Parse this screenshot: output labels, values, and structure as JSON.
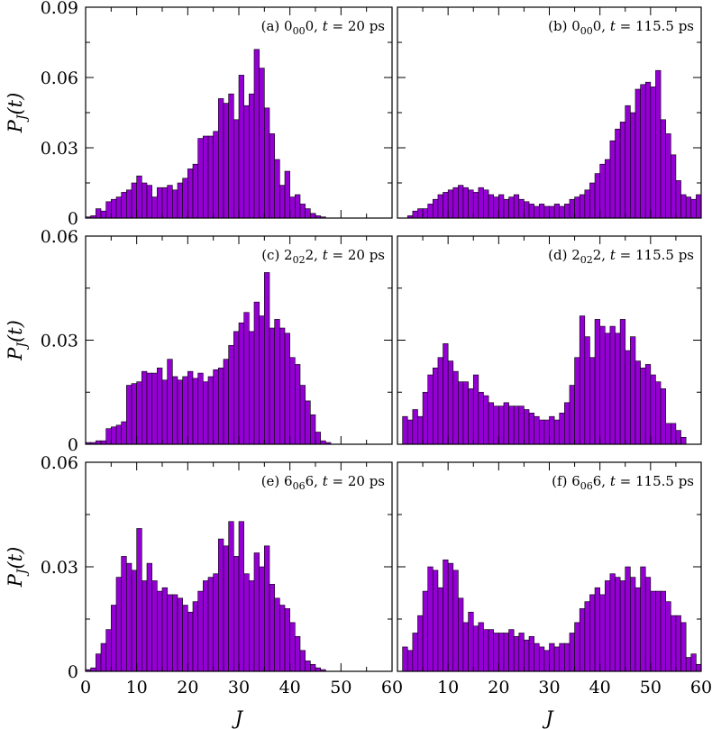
{
  "chart_data": [
    {
      "type": "bar",
      "panel": "a",
      "annotation": "(a) 0₀₀0, t = 20 ps",
      "xlabel": "",
      "ylabel": "P_J(t)",
      "xlim": [
        0,
        60
      ],
      "ylim": [
        0,
        0.09
      ],
      "yticks": [
        "0",
        "0.03",
        "0.06",
        "0.09"
      ],
      "xticks": [],
      "x": [
        0,
        1,
        2,
        3,
        4,
        5,
        6,
        7,
        8,
        9,
        10,
        11,
        12,
        13,
        14,
        15,
        16,
        17,
        18,
        19,
        20,
        21,
        22,
        23,
        24,
        25,
        26,
        27,
        28,
        29,
        30,
        31,
        32,
        33,
        34,
        35,
        36,
        37,
        38,
        39,
        40,
        41,
        42,
        43,
        44,
        45,
        46,
        47,
        48,
        49,
        50,
        51,
        52,
        53,
        54,
        55,
        56,
        57,
        58,
        59
      ],
      "values": [
        0.0005,
        0.001,
        0.004,
        0.003,
        0.007,
        0.008,
        0.009,
        0.011,
        0.012,
        0.015,
        0.018,
        0.015,
        0.014,
        0.009,
        0.013,
        0.013,
        0.014,
        0.012,
        0.015,
        0.017,
        0.021,
        0.023,
        0.034,
        0.035,
        0.035,
        0.037,
        0.051,
        0.049,
        0.053,
        0.042,
        0.061,
        0.048,
        0.053,
        0.072,
        0.064,
        0.047,
        0.036,
        0.025,
        0.014,
        0.02,
        0.009,
        0.01,
        0.006,
        0.004,
        0.002,
        0.001,
        0.0005,
        0,
        0,
        0,
        0,
        0,
        0,
        0,
        0,
        0,
        0,
        0,
        0,
        0
      ]
    },
    {
      "type": "bar",
      "panel": "b",
      "annotation": "(b) 0₀₀0, t = 115.5 ps",
      "xlabel": "",
      "ylabel": "",
      "xlim": [
        0,
        60
      ],
      "ylim": [
        0,
        0.09
      ],
      "yticks": [],
      "xticks": [],
      "x": [
        2,
        3,
        4,
        5,
        6,
        7,
        8,
        9,
        10,
        11,
        12,
        13,
        14,
        15,
        16,
        17,
        18,
        19,
        20,
        21,
        22,
        23,
        24,
        25,
        26,
        27,
        28,
        29,
        30,
        31,
        32,
        33,
        34,
        35,
        36,
        37,
        38,
        39,
        40,
        41,
        42,
        43,
        44,
        45,
        46,
        47,
        48,
        49,
        50,
        51,
        52,
        53,
        54,
        55,
        56,
        57,
        58,
        59
      ],
      "values": [
        0.001,
        0.003,
        0.004,
        0.004,
        0.006,
        0.008,
        0.01,
        0.011,
        0.012,
        0.013,
        0.014,
        0.013,
        0.012,
        0.011,
        0.013,
        0.012,
        0.01,
        0.009,
        0.01,
        0.008,
        0.009,
        0.01,
        0.008,
        0.007,
        0.006,
        0.005,
        0.006,
        0.005,
        0.005,
        0.006,
        0.005,
        0.006,
        0.008,
        0.009,
        0.01,
        0.012,
        0.015,
        0.019,
        0.023,
        0.025,
        0.033,
        0.038,
        0.041,
        0.048,
        0.045,
        0.055,
        0.057,
        0.058,
        0.056,
        0.063,
        0.042,
        0.036,
        0.027,
        0.016,
        0.01,
        0.009,
        0.008,
        0.01
      ]
    },
    {
      "type": "bar",
      "panel": "c",
      "annotation": "(c) 2₀₂2, t = 20 ps",
      "xlabel": "",
      "ylabel": "P_J(t)",
      "xlim": [
        0,
        60
      ],
      "ylim": [
        0,
        0.06
      ],
      "yticks": [
        "0",
        "0.03",
        "0.06"
      ],
      "xticks": [],
      "x": [
        0,
        1,
        2,
        3,
        4,
        5,
        6,
        7,
        8,
        9,
        10,
        11,
        12,
        13,
        14,
        15,
        16,
        17,
        18,
        19,
        20,
        21,
        22,
        23,
        24,
        25,
        26,
        27,
        28,
        29,
        30,
        31,
        32,
        33,
        34,
        35,
        36,
        37,
        38,
        39,
        40,
        41,
        42,
        43,
        44,
        45,
        46,
        47,
        48,
        49,
        50,
        51,
        52,
        53,
        54,
        55,
        56,
        57,
        58,
        59
      ],
      "values": [
        0.0005,
        0.0005,
        0.001,
        0.001,
        0.0045,
        0.005,
        0.0055,
        0.0065,
        0.017,
        0.0175,
        0.018,
        0.021,
        0.0205,
        0.0205,
        0.022,
        0.0185,
        0.0245,
        0.0195,
        0.0185,
        0.0195,
        0.021,
        0.019,
        0.0205,
        0.018,
        0.0195,
        0.0215,
        0.022,
        0.0245,
        0.0285,
        0.0325,
        0.035,
        0.038,
        0.0325,
        0.041,
        0.037,
        0.0495,
        0.0335,
        0.036,
        0.0335,
        0.032,
        0.025,
        0.023,
        0.017,
        0.0125,
        0.0085,
        0.0035,
        0.001,
        0.0005,
        0,
        0,
        0,
        0,
        0,
        0,
        0,
        0,
        0,
        0,
        0,
        0
      ]
    },
    {
      "type": "bar",
      "panel": "d",
      "annotation": "(d) 2₀₂2, t = 115.5 ps",
      "xlabel": "",
      "ylabel": "",
      "xlim": [
        0,
        60
      ],
      "ylim": [
        0,
        0.06
      ],
      "yticks": [],
      "xticks": [],
      "x": [
        1,
        2,
        3,
        4,
        5,
        6,
        7,
        8,
        9,
        10,
        11,
        12,
        13,
        14,
        15,
        16,
        17,
        18,
        19,
        20,
        21,
        22,
        23,
        24,
        25,
        26,
        27,
        28,
        29,
        30,
        31,
        32,
        33,
        34,
        35,
        36,
        37,
        38,
        39,
        40,
        41,
        42,
        43,
        44,
        45,
        46,
        47,
        48,
        49,
        50,
        51,
        52,
        53,
        54,
        55,
        56,
        57,
        58,
        59
      ],
      "values": [
        0.008,
        0.007,
        0.01,
        0.008,
        0.015,
        0.02,
        0.022,
        0.025,
        0.029,
        0.024,
        0.021,
        0.018,
        0.018,
        0.016,
        0.02,
        0.015,
        0.014,
        0.012,
        0.011,
        0.011,
        0.012,
        0.011,
        0.011,
        0.011,
        0.01,
        0.009,
        0.008,
        0.007,
        0.007,
        0.008,
        0.007,
        0.009,
        0.012,
        0.017,
        0.025,
        0.037,
        0.031,
        0.025,
        0.036,
        0.034,
        0.032,
        0.034,
        0.032,
        0.036,
        0.027,
        0.031,
        0.024,
        0.022,
        0.023,
        0.02,
        0.018,
        0.016,
        0.006,
        0.006,
        0.004,
        0.002,
        0,
        0,
        0
      ]
    },
    {
      "type": "bar",
      "panel": "e",
      "annotation": "(e) 6₀₆6, t = 20 ps",
      "xlabel": "J",
      "ylabel": "P_J(t)",
      "xlim": [
        0,
        60
      ],
      "ylim": [
        0,
        0.06
      ],
      "yticks": [
        "0",
        "0.03",
        "0.06"
      ],
      "xticks": [
        "0",
        "10",
        "20",
        "30",
        "40",
        "50",
        "60"
      ],
      "x": [
        0,
        1,
        2,
        3,
        4,
        5,
        6,
        7,
        8,
        9,
        10,
        11,
        12,
        13,
        14,
        15,
        16,
        17,
        18,
        19,
        20,
        21,
        22,
        23,
        24,
        25,
        26,
        27,
        28,
        29,
        30,
        31,
        32,
        33,
        34,
        35,
        36,
        37,
        38,
        39,
        40,
        41,
        42,
        43,
        44,
        45,
        46,
        47,
        48,
        49,
        50,
        51,
        52,
        53,
        54,
        55,
        56,
        57,
        58,
        59
      ],
      "values": [
        0.0005,
        0.001,
        0.005,
        0.008,
        0.012,
        0.019,
        0.027,
        0.033,
        0.031,
        0.029,
        0.041,
        0.026,
        0.031,
        0.026,
        0.023,
        0.024,
        0.022,
        0.022,
        0.021,
        0.019,
        0.017,
        0.02,
        0.023,
        0.026,
        0.027,
        0.028,
        0.038,
        0.036,
        0.043,
        0.033,
        0.043,
        0.028,
        0.026,
        0.034,
        0.03,
        0.036,
        0.025,
        0.021,
        0.019,
        0.018,
        0.014,
        0.01,
        0.006,
        0.003,
        0.002,
        0.001,
        0.0005,
        0,
        0,
        0,
        0,
        0,
        0,
        0,
        0,
        0,
        0,
        0,
        0,
        0
      ]
    },
    {
      "type": "bar",
      "panel": "f",
      "annotation": "(f) 6₀₆6, t = 115.5 ps",
      "xlabel": "J",
      "ylabel": "",
      "xlim": [
        0,
        60
      ],
      "ylim": [
        0,
        0.06
      ],
      "yticks": [],
      "xticks": [
        "10",
        "20",
        "30",
        "40",
        "50",
        "60"
      ],
      "x": [
        1,
        2,
        3,
        4,
        5,
        6,
        7,
        8,
        9,
        10,
        11,
        12,
        13,
        14,
        15,
        16,
        17,
        18,
        19,
        20,
        21,
        22,
        23,
        24,
        25,
        26,
        27,
        28,
        29,
        30,
        31,
        32,
        33,
        34,
        35,
        36,
        37,
        38,
        39,
        40,
        41,
        42,
        43,
        44,
        45,
        46,
        47,
        48,
        49,
        50,
        51,
        52,
        53,
        54,
        55,
        56,
        57,
        58,
        59
      ],
      "values": [
        0.007,
        0.006,
        0.011,
        0.016,
        0.023,
        0.03,
        0.029,
        0.024,
        0.032,
        0.031,
        0.029,
        0.021,
        0.014,
        0.017,
        0.013,
        0.014,
        0.012,
        0.012,
        0.011,
        0.011,
        0.011,
        0.012,
        0.01,
        0.011,
        0.009,
        0.01,
        0.008,
        0.007,
        0.006,
        0.008,
        0.007,
        0.008,
        0.008,
        0.011,
        0.014,
        0.018,
        0.02,
        0.022,
        0.024,
        0.022,
        0.026,
        0.028,
        0.027,
        0.026,
        0.03,
        0.027,
        0.024,
        0.03,
        0.027,
        0.023,
        0.023,
        0.023,
        0.02,
        0.016,
        0.016,
        0.014,
        0.004,
        0.005,
        0.002
      ]
    }
  ]
}
